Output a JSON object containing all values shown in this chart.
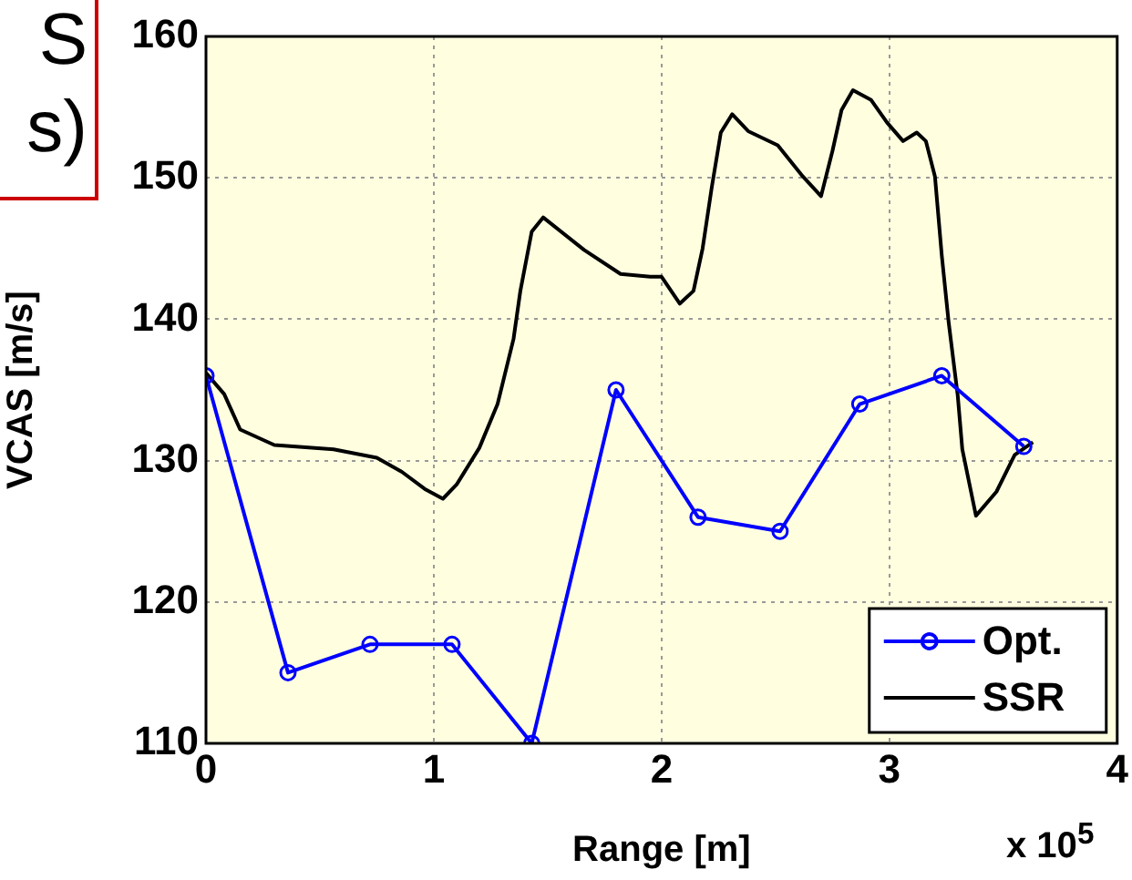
{
  "chart_data": {
    "type": "line",
    "xlabel": "Range [m]",
    "ylabel": "VCAS [m/s]",
    "xlim": [
      0,
      4
    ],
    "xticks": [
      0,
      1,
      2,
      3,
      4
    ],
    "ylim": [
      110,
      160
    ],
    "yticks": [
      110,
      120,
      130,
      140,
      150,
      160
    ],
    "grid": true,
    "legend": "bottom right",
    "annotations": [
      "S",
      "s)",
      "x 10$^{5}$"
    ],
    "series": [
      {
        "name": "Opt.",
        "color": "#0000ff",
        "marker": "circle",
        "x": [
          0,
          0.36,
          0.72,
          1.08,
          1.43,
          1.8,
          2.16,
          2.52,
          2.87,
          3.23,
          3.59
        ],
        "values": [
          136,
          115,
          117,
          117,
          110,
          135,
          126,
          125,
          134,
          136,
          131
        ]
      },
      {
        "name": "SSR",
        "color": "#000000",
        "marker": "none",
        "x": [
          0,
          0.08,
          0.15,
          0.3,
          0.56,
          0.75,
          0.86,
          0.96,
          1.04,
          1.1,
          1.2,
          1.28,
          1.35,
          1.38,
          1.43,
          1.48,
          1.66,
          1.82,
          1.95,
          2.0,
          2.08,
          2.14,
          2.18,
          2.22,
          2.26,
          2.31,
          2.38,
          2.51,
          2.62,
          2.7,
          2.75,
          2.79,
          2.84,
          2.92,
          2.99,
          3.06,
          3.12,
          3.16,
          3.2,
          3.23,
          3.26,
          3.3,
          3.32,
          3.38,
          3.47,
          3.55,
          3.63
        ],
        "values": [
          136.2,
          134.7,
          132.2,
          131.1,
          130.8,
          130.2,
          129.2,
          128,
          127.3,
          128.3,
          130.9,
          134,
          138.6,
          142,
          146.2,
          147.2,
          144.9,
          143.2,
          143,
          143,
          141.1,
          142,
          145,
          149.3,
          153.2,
          154.5,
          153.3,
          152.3,
          150.1,
          148.7,
          151.9,
          154.8,
          156.2,
          155.5,
          153.9,
          152.6,
          153.2,
          152.6,
          150.1,
          144.5,
          139.8,
          134.6,
          130.8,
          126.1,
          127.8,
          130.4,
          131.3
        ]
      }
    ]
  }
}
